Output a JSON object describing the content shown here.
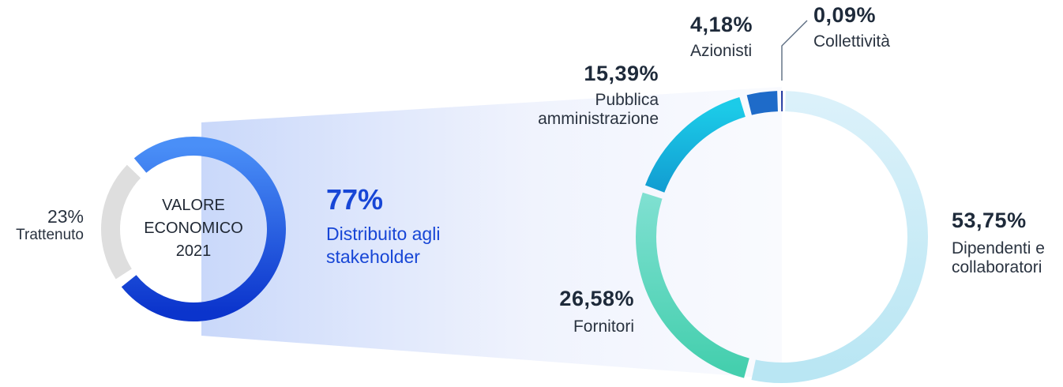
{
  "chart_data": [
    {
      "type": "pie",
      "variant": "donut",
      "center_title_lines": [
        "VALORE",
        "ECONOMICO",
        "2021"
      ],
      "slices": [
        {
          "pct": "77%",
          "label_lines": [
            "Distribuito agli",
            "stakeholder"
          ],
          "value": 77,
          "color": "#2e5fe8"
        },
        {
          "pct": "23%",
          "label_lines": [
            "Trattenuto"
          ],
          "value": 23,
          "color": "#dedede"
        }
      ]
    },
    {
      "type": "pie",
      "variant": "donut",
      "slices": [
        {
          "pct": "53,75%",
          "label_lines": [
            "Dipendenti e",
            "collaboratori"
          ],
          "value": 53.75,
          "color": "#c9ecf7"
        },
        {
          "pct": "26,58%",
          "label_lines": [
            "Fornitori"
          ],
          "value": 26.58,
          "color": "#5fd9c1"
        },
        {
          "pct": "15,39%",
          "label_lines": [
            "Pubblica",
            "amministrazione"
          ],
          "value": 15.39,
          "color": "#16b6dc"
        },
        {
          "pct": "4,18%",
          "label_lines": [
            "Azionisti"
          ],
          "value": 4.18,
          "color": "#1e6bc9"
        },
        {
          "pct": "0,09%",
          "label_lines": [
            "Collettività"
          ],
          "value": 0.09,
          "color": "#102a9a"
        }
      ]
    }
  ]
}
